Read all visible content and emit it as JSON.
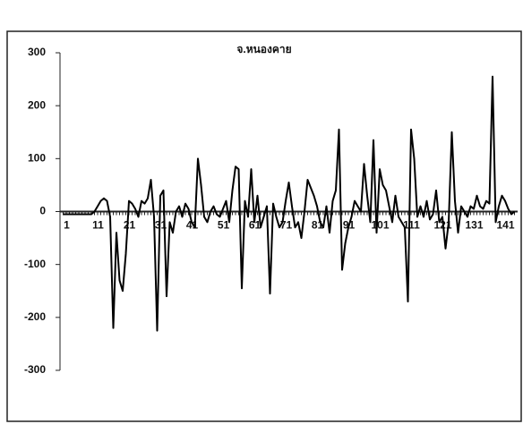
{
  "chart_data": {
    "type": "line",
    "title": "จ.หนองคาย",
    "x": [
      1,
      2,
      3,
      4,
      5,
      6,
      7,
      8,
      9,
      10,
      11,
      12,
      13,
      14,
      15,
      16,
      17,
      18,
      19,
      20,
      21,
      22,
      23,
      24,
      25,
      26,
      27,
      28,
      29,
      30,
      31,
      32,
      33,
      34,
      35,
      36,
      37,
      38,
      39,
      40,
      41,
      42,
      43,
      44,
      45,
      46,
      47,
      48,
      49,
      50,
      51,
      52,
      53,
      54,
      55,
      56,
      57,
      58,
      59,
      60,
      61,
      62,
      63,
      64,
      65,
      66,
      67,
      68,
      69,
      70,
      71,
      72,
      73,
      74,
      75,
      76,
      77,
      78,
      79,
      80,
      81,
      82,
      83,
      84,
      85,
      86,
      87,
      88,
      89,
      90,
      91,
      92,
      93,
      94,
      95,
      96,
      97,
      98,
      99,
      100,
      101,
      102,
      103,
      104,
      105,
      106,
      107,
      108,
      109,
      110,
      111,
      112,
      113,
      114,
      115,
      116,
      117,
      118,
      119,
      120,
      121,
      122,
      123,
      124,
      125,
      126,
      127,
      128,
      129,
      130,
      131,
      132,
      133,
      134,
      135,
      136,
      137,
      138,
      139,
      140,
      141,
      142,
      143,
      144,
      145
    ],
    "series": [
      {
        "color": "#000000",
        "values": [
          -5,
          -5,
          -5,
          -5,
          -5,
          -5,
          -5,
          -5,
          -5,
          -5,
          0,
          10,
          20,
          25,
          20,
          -10,
          -220,
          -40,
          -130,
          -150,
          -80,
          20,
          15,
          5,
          -10,
          20,
          15,
          25,
          60,
          -10,
          -225,
          30,
          40,
          -160,
          -20,
          -40,
          0,
          10,
          -10,
          15,
          5,
          -20,
          -30,
          100,
          50,
          -10,
          -20,
          0,
          10,
          -5,
          -10,
          5,
          20,
          -20,
          40,
          85,
          80,
          -145,
          20,
          -10,
          80,
          -20,
          30,
          -30,
          -10,
          10,
          -155,
          15,
          -10,
          -30,
          -20,
          20,
          55,
          10,
          -30,
          -20,
          -50,
          0,
          60,
          45,
          30,
          10,
          -20,
          -30,
          10,
          -40,
          20,
          40,
          155,
          -110,
          -60,
          -30,
          -10,
          20,
          10,
          0,
          90,
          30,
          -20,
          135,
          -40,
          80,
          50,
          40,
          10,
          -20,
          30,
          -10,
          -20,
          -30,
          -170,
          155,
          100,
          -10,
          10,
          -10,
          20,
          -15,
          -5,
          40,
          -20,
          -10,
          -70,
          -20,
          150,
          20,
          -40,
          10,
          0,
          -10,
          10,
          5,
          30,
          10,
          5,
          20,
          15,
          255,
          -20,
          10,
          30,
          20,
          5,
          -5,
          0
        ]
      }
    ],
    "xlim": [
      0,
      146
    ],
    "xticks": [
      1,
      11,
      21,
      31,
      41,
      51,
      61,
      71,
      81,
      91,
      101,
      111,
      121,
      131,
      141
    ],
    "ylim": [
      -300,
      300
    ],
    "yticks": [
      -300,
      -200,
      -100,
      0,
      100,
      200,
      300
    ]
  }
}
